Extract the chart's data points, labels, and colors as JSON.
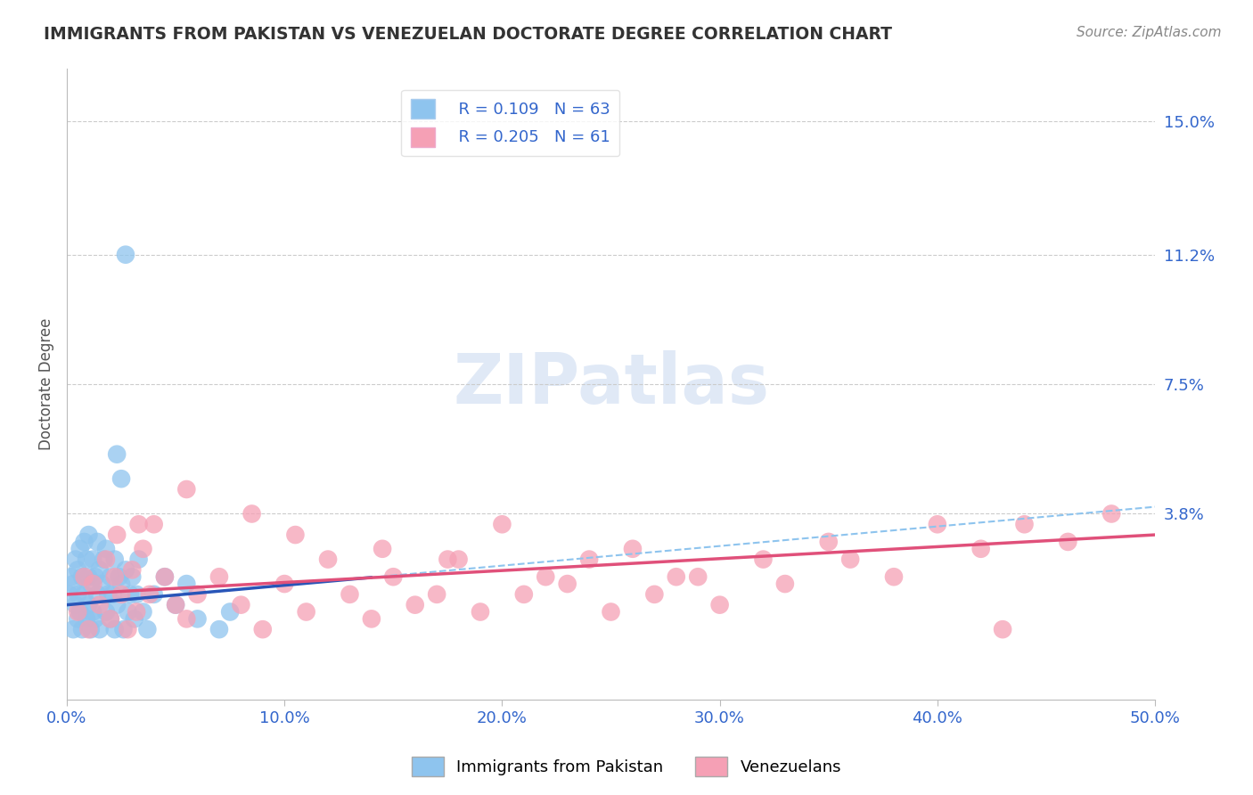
{
  "title": "IMMIGRANTS FROM PAKISTAN VS VENEZUELAN DOCTORATE DEGREE CORRELATION CHART",
  "source": "Source: ZipAtlas.com",
  "xlabel_ticks": [
    "0.0%",
    "10.0%",
    "20.0%",
    "30.0%",
    "40.0%",
    "50.0%"
  ],
  "xlabel_vals": [
    0.0,
    10.0,
    20.0,
    30.0,
    40.0,
    50.0
  ],
  "ylabel": "Doctorate Degree",
  "ylabel_right_ticks": [
    "15.0%",
    "11.2%",
    "7.5%",
    "3.8%"
  ],
  "ylabel_right_vals": [
    15.0,
    11.2,
    7.5,
    3.8
  ],
  "xlim": [
    0.0,
    50.0
  ],
  "ylim": [
    -1.5,
    16.5
  ],
  "pakistan_R": 0.109,
  "pakistan_N": 63,
  "venezuela_R": 0.205,
  "venezuela_N": 61,
  "pakistan_color": "#8EC4EE",
  "venezuela_color": "#F5A0B5",
  "pakistan_trend_color": "#2855B8",
  "venezuela_trend_color": "#E0507A",
  "pakistan_dashed_color": "#8EC4EE",
  "watermark_color": "#C8D8F0",
  "pakistan_scatter_x": [
    0.1,
    0.2,
    0.3,
    0.3,
    0.4,
    0.4,
    0.5,
    0.5,
    0.5,
    0.6,
    0.6,
    0.7,
    0.7,
    0.8,
    0.8,
    0.9,
    0.9,
    1.0,
    1.0,
    1.0,
    1.1,
    1.1,
    1.2,
    1.2,
    1.3,
    1.3,
    1.4,
    1.4,
    1.5,
    1.5,
    1.6,
    1.7,
    1.8,
    1.8,
    1.9,
    2.0,
    2.0,
    2.1,
    2.2,
    2.2,
    2.3,
    2.4,
    2.5,
    2.6,
    2.7,
    2.8,
    2.9,
    3.0,
    3.1,
    3.2,
    3.3,
    3.5,
    3.7,
    4.0,
    4.5,
    5.0,
    5.5,
    6.0,
    7.0,
    7.5,
    2.3,
    2.5,
    2.7
  ],
  "pakistan_scatter_y": [
    1.5,
    2.0,
    0.5,
    1.8,
    1.2,
    2.5,
    0.8,
    1.5,
    2.2,
    1.0,
    2.8,
    0.5,
    2.0,
    1.5,
    3.0,
    0.8,
    2.5,
    1.2,
    2.0,
    3.2,
    0.5,
    1.8,
    1.0,
    2.5,
    0.8,
    2.0,
    1.5,
    3.0,
    0.5,
    2.2,
    1.8,
    2.5,
    1.0,
    2.8,
    1.5,
    0.8,
    2.0,
    1.5,
    0.5,
    2.5,
    1.2,
    2.0,
    1.8,
    0.5,
    2.2,
    1.0,
    1.5,
    2.0,
    0.8,
    1.5,
    2.5,
    1.0,
    0.5,
    1.5,
    2.0,
    1.2,
    1.8,
    0.8,
    0.5,
    1.0,
    5.5,
    4.8,
    11.2
  ],
  "venezuela_scatter_x": [
    0.5,
    0.8,
    1.0,
    1.2,
    1.5,
    1.8,
    2.0,
    2.2,
    2.5,
    2.8,
    3.0,
    3.2,
    3.5,
    3.8,
    4.0,
    4.5,
    5.0,
    5.5,
    6.0,
    7.0,
    8.0,
    9.0,
    10.0,
    11.0,
    12.0,
    13.0,
    14.0,
    15.0,
    16.0,
    17.0,
    18.0,
    19.0,
    20.0,
    21.0,
    22.0,
    23.0,
    24.0,
    25.0,
    26.0,
    27.0,
    28.0,
    30.0,
    32.0,
    33.0,
    35.0,
    36.0,
    38.0,
    40.0,
    42.0,
    44.0,
    46.0,
    48.0,
    2.3,
    3.3,
    5.5,
    8.5,
    10.5,
    14.5,
    17.5,
    29.0,
    43.0
  ],
  "venezuela_scatter_y": [
    1.0,
    2.0,
    0.5,
    1.8,
    1.2,
    2.5,
    0.8,
    2.0,
    1.5,
    0.5,
    2.2,
    1.0,
    2.8,
    1.5,
    3.5,
    2.0,
    1.2,
    0.8,
    1.5,
    2.0,
    1.2,
    0.5,
    1.8,
    1.0,
    2.5,
    1.5,
    0.8,
    2.0,
    1.2,
    1.5,
    2.5,
    1.0,
    3.5,
    1.5,
    2.0,
    1.8,
    2.5,
    1.0,
    2.8,
    1.5,
    2.0,
    1.2,
    2.5,
    1.8,
    3.0,
    2.5,
    2.0,
    3.5,
    2.8,
    3.5,
    3.0,
    3.8,
    3.2,
    3.5,
    4.5,
    3.8,
    3.2,
    2.8,
    2.5,
    2.0,
    0.5
  ],
  "pak_trend_x0": 0.0,
  "pak_trend_x1": 50.0,
  "pak_trend_y0": 1.2,
  "pak_trend_y1": 4.0,
  "pak_solid_x1": 14.0,
  "ven_trend_x0": 0.0,
  "ven_trend_x1": 50.0,
  "ven_trend_y0": 1.5,
  "ven_trend_y1": 3.2
}
